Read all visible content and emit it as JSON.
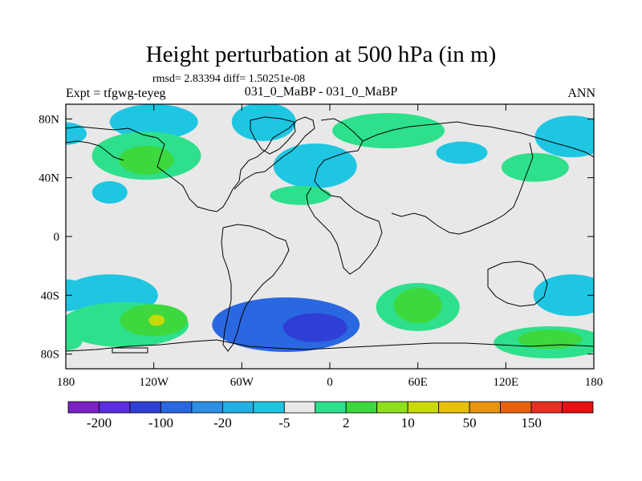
{
  "header": {
    "title": "Height perturbation at 500 hPa (in m)",
    "stats": "rmsd= 2.83394 diff= 1.50251e-08",
    "experiment": "Expt = tfgwg-teyeg",
    "case": "031_0_MaBP - 031_0_MaBP",
    "season": "ANN"
  },
  "chart_data": {
    "type": "heatmap",
    "title": "Height perturbation at 500 hPa (in m)",
    "xlabel": "",
    "ylabel": "",
    "xlim": [
      -180,
      180
    ],
    "ylim": [
      -90,
      90
    ],
    "x_ticks": [
      {
        "value": -180,
        "label": "180"
      },
      {
        "value": -120,
        "label": "120W"
      },
      {
        "value": -60,
        "label": "60W"
      },
      {
        "value": 0,
        "label": "0"
      },
      {
        "value": 60,
        "label": "60E"
      },
      {
        "value": 120,
        "label": "120E"
      },
      {
        "value": 180,
        "label": "180"
      }
    ],
    "y_ticks": [
      {
        "value": 80,
        "label": "80N"
      },
      {
        "value": 40,
        "label": "40N"
      },
      {
        "value": 0,
        "label": "0"
      },
      {
        "value": -40,
        "label": "40S"
      },
      {
        "value": -80,
        "label": "80S"
      }
    ],
    "colorbar": {
      "labels": [
        "-200",
        "-100",
        "-20",
        "-5",
        "2",
        "10",
        "50",
        "150"
      ],
      "colors": [
        "#7b22c4",
        "#5a2ee0",
        "#2f3fd6",
        "#2968e0",
        "#2c8fe6",
        "#22b0e6",
        "#1ec6e2",
        "#e8e8e8",
        "#2ee08c",
        "#3dd83d",
        "#8ee01c",
        "#c8da0a",
        "#e8c00c",
        "#e89610",
        "#e8620c",
        "#e83020",
        "#e81010"
      ]
    },
    "regions": [
      {
        "sign": "negative",
        "level": -5,
        "lon": -120,
        "lat": 78
      },
      {
        "sign": "negative",
        "level": -5,
        "lon": -45,
        "lat": 78
      },
      {
        "sign": "negative",
        "level": -5,
        "lon": -150,
        "lat": 30
      },
      {
        "sign": "negative",
        "level": -5,
        "lon": -10,
        "lat": 48
      },
      {
        "sign": "negative",
        "level": -5,
        "lon": 90,
        "lat": 57
      },
      {
        "sign": "negative",
        "level": -5,
        "lon": 165,
        "lat": 68
      },
      {
        "sign": "negative",
        "level": -5,
        "lon": -150,
        "lat": -40
      },
      {
        "sign": "negative",
        "level": -5,
        "lon": 165,
        "lat": -40
      },
      {
        "sign": "negative",
        "level": -20,
        "lon": -30,
        "lat": -60
      },
      {
        "sign": "negative",
        "level": -100,
        "lon": -10,
        "lat": -62
      },
      {
        "sign": "positive",
        "level": 2,
        "lon": -125,
        "lat": 55
      },
      {
        "sign": "positive",
        "level": 10,
        "lon": -125,
        "lat": 52
      },
      {
        "sign": "positive",
        "level": 2,
        "lon": 40,
        "lat": 72
      },
      {
        "sign": "positive",
        "level": 2,
        "lon": 140,
        "lat": 47
      },
      {
        "sign": "positive",
        "level": 2,
        "lon": -20,
        "lat": 28
      },
      {
        "sign": "positive",
        "level": 2,
        "lon": -140,
        "lat": -60
      },
      {
        "sign": "positive",
        "level": 10,
        "lon": -120,
        "lat": -57
      },
      {
        "sign": "positive",
        "level": 50,
        "lon": -118,
        "lat": -57
      },
      {
        "sign": "positive",
        "level": 2,
        "lon": 60,
        "lat": -48
      },
      {
        "sign": "positive",
        "level": 10,
        "lon": 60,
        "lat": -47
      },
      {
        "sign": "positive",
        "level": 2,
        "lon": 150,
        "lat": -72
      },
      {
        "sign": "positive",
        "level": 10,
        "lon": 150,
        "lat": -70
      }
    ]
  }
}
